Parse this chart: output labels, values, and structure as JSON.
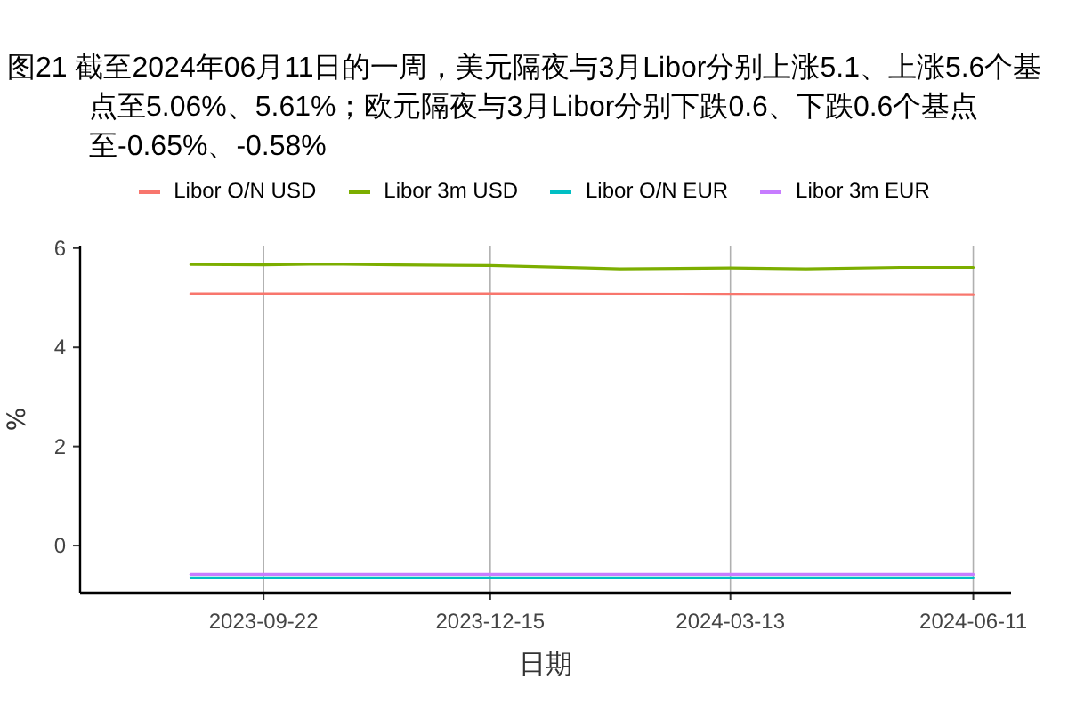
{
  "chart_data": {
    "type": "line",
    "title": "图21  截至2024年06月11日的一周，美元隔夜与3月Libor分别上涨5.1、上涨5.6个基点至5.06%、5.61%；欧元隔夜与3月Libor分别下跌0.6、下跌0.6个基点至-0.65%、-0.58%",
    "xlabel": "日期",
    "ylabel": "%",
    "xlim": [
      "2023-07-16",
      "2024-06-25"
    ],
    "xticks": [
      "2023-09-22",
      "2023-12-15",
      "2024-03-13",
      "2024-06-11"
    ],
    "ylim": [
      -0.95,
      6.05
    ],
    "yticks": [
      0,
      2,
      4,
      6
    ],
    "grid": "x",
    "legend": "top",
    "series": [
      {
        "name": "Libor O/N USD",
        "color": "#f8766d",
        "x": [
          "2023-08-26",
          "2023-12-15",
          "2024-03-13",
          "2024-06-11"
        ],
        "values": [
          5.08,
          5.08,
          5.07,
          5.06
        ]
      },
      {
        "name": "Libor 3m USD",
        "color": "#7cae00",
        "x": [
          "2023-08-26",
          "2023-09-22",
          "2023-10-15",
          "2023-11-10",
          "2023-12-15",
          "2024-01-20",
          "2024-02-01",
          "2024-03-13",
          "2024-04-10",
          "2024-05-15",
          "2024-06-11"
        ],
        "values": [
          5.67,
          5.66,
          5.68,
          5.66,
          5.65,
          5.6,
          5.58,
          5.6,
          5.58,
          5.61,
          5.61
        ]
      },
      {
        "name": "Libor O/N EUR",
        "color": "#00bfc4",
        "x": [
          "2023-08-26",
          "2024-06-11"
        ],
        "values": [
          -0.65,
          -0.65
        ]
      },
      {
        "name": "Libor 3m EUR",
        "color": "#c77cff",
        "x": [
          "2023-08-26",
          "2024-06-11"
        ],
        "values": [
          -0.58,
          -0.58
        ]
      }
    ]
  }
}
